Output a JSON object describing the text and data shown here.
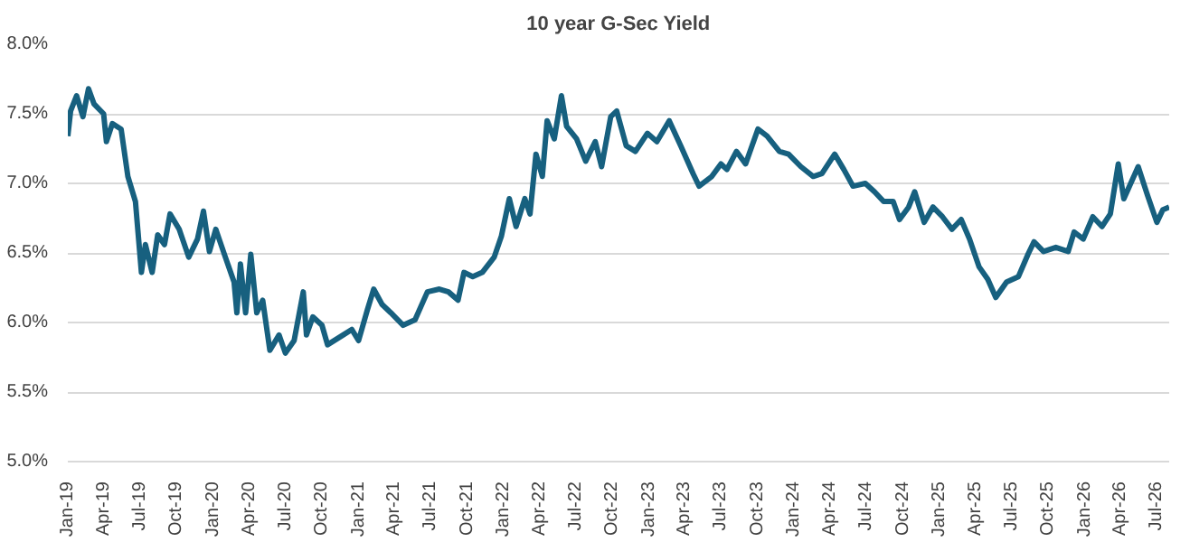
{
  "chart_data": {
    "type": "line",
    "title": "10 year G-Sec Yield",
    "x": [
      "2019-01-01",
      "2019-01-08",
      "2019-01-23",
      "2019-02-08",
      "2019-02-22",
      "2019-03-08",
      "2019-04-01",
      "2019-04-08",
      "2019-04-23",
      "2019-05-15",
      "2019-06-01",
      "2019-06-20",
      "2019-07-05",
      "2019-07-15",
      "2019-08-01",
      "2019-08-15",
      "2019-09-01",
      "2019-09-15",
      "2019-10-08",
      "2019-11-01",
      "2019-11-23",
      "2019-12-08",
      "2019-12-23",
      "2020-01-08",
      "2020-02-01",
      "2020-02-23",
      "2020-03-01",
      "2020-03-10",
      "2020-03-23",
      "2020-04-05",
      "2020-04-20",
      "2020-05-05",
      "2020-05-23",
      "2020-06-15",
      "2020-07-01",
      "2020-07-23",
      "2020-08-15",
      "2020-08-23",
      "2020-09-08",
      "2020-10-01",
      "2020-10-15",
      "2020-11-23",
      "2020-12-15",
      "2021-01-01",
      "2021-01-23",
      "2021-02-08",
      "2021-03-01",
      "2021-03-23",
      "2021-04-23",
      "2021-05-23",
      "2021-06-23",
      "2021-07-23",
      "2021-08-15",
      "2021-09-08",
      "2021-09-23",
      "2021-10-15",
      "2021-11-08",
      "2021-12-08",
      "2021-12-26",
      "2022-01-15",
      "2022-02-01",
      "2022-02-23",
      "2022-03-08",
      "2022-03-23",
      "2022-04-08",
      "2022-04-20",
      "2022-05-08",
      "2022-05-26",
      "2022-06-08",
      "2022-07-03",
      "2022-07-26",
      "2022-08-19",
      "2022-09-04",
      "2022-09-27",
      "2022-10-12",
      "2022-11-05",
      "2022-11-28",
      "2022-12-28",
      "2023-01-21",
      "2023-02-21",
      "2023-03-22",
      "2023-04-22",
      "2023-05-07",
      "2023-06-08",
      "2023-07-01",
      "2023-07-16",
      "2023-08-09",
      "2023-09-01",
      "2023-10-02",
      "2023-10-25",
      "2023-11-25",
      "2023-12-18",
      "2024-01-18",
      "2024-02-18",
      "2024-03-11",
      "2024-04-12",
      "2024-05-05",
      "2024-05-28",
      "2024-06-28",
      "2024-07-21",
      "2024-08-13",
      "2024-09-06",
      "2024-09-22",
      "2024-10-15",
      "2024-10-30",
      "2024-11-23",
      "2024-12-15",
      "2025-01-08",
      "2025-02-01",
      "2025-02-24",
      "2025-03-17",
      "2025-04-10",
      "2025-05-02",
      "2025-05-22",
      "2025-06-18",
      "2025-07-18",
      "2025-08-11",
      "2025-08-26",
      "2025-09-19",
      "2025-10-20",
      "2025-11-20",
      "2025-12-05",
      "2025-12-28",
      "2026-01-21",
      "2026-02-13",
      "2026-03-06",
      "2026-03-26",
      "2026-04-09",
      "2026-05-15",
      "2026-06-08",
      "2026-07-01",
      "2026-07-16",
      "2026-08-01"
    ],
    "series": [
      {
        "color": "#17607f",
        "values": [
          7.34,
          7.52,
          7.63,
          7.48,
          7.68,
          7.57,
          7.5,
          7.3,
          7.43,
          7.39,
          7.05,
          6.87,
          6.36,
          6.56,
          6.36,
          6.63,
          6.56,
          6.78,
          6.67,
          6.47,
          6.6,
          6.8,
          6.51,
          6.67,
          6.47,
          6.29,
          6.07,
          6.42,
          6.07,
          6.49,
          6.07,
          6.16,
          5.8,
          5.91,
          5.78,
          5.87,
          6.22,
          5.91,
          6.04,
          5.98,
          5.84,
          5.91,
          5.95,
          5.87,
          6.09,
          6.24,
          6.13,
          6.07,
          5.98,
          6.02,
          6.22,
          6.24,
          6.22,
          6.16,
          6.36,
          6.33,
          6.36,
          6.47,
          6.62,
          6.89,
          6.69,
          6.89,
          6.78,
          7.21,
          7.05,
          7.45,
          7.32,
          7.63,
          7.41,
          7.32,
          7.16,
          7.3,
          7.12,
          7.48,
          7.52,
          7.27,
          7.23,
          7.36,
          7.3,
          7.45,
          7.27,
          7.07,
          6.98,
          7.05,
          7.14,
          7.1,
          7.23,
          7.14,
          7.39,
          7.34,
          7.23,
          7.21,
          7.12,
          7.05,
          7.07,
          7.21,
          7.1,
          6.98,
          7.0,
          6.94,
          6.87,
          6.87,
          6.74,
          6.83,
          6.94,
          6.72,
          6.83,
          6.76,
          6.67,
          6.74,
          6.6,
          6.4,
          6.31,
          6.18,
          6.29,
          6.33,
          6.49,
          6.58,
          6.51,
          6.54,
          6.51,
          6.65,
          6.6,
          6.76,
          6.69,
          6.78,
          7.14,
          6.89,
          7.12,
          6.91,
          6.72,
          6.81,
          6.83
        ]
      }
    ],
    "xlim": [
      "2019-01-01",
      "2026-08-01"
    ],
    "xticks": [
      {
        "value": "2019-01-01",
        "label": "Jan-19"
      },
      {
        "value": "2019-04-01",
        "label": "Apr-19"
      },
      {
        "value": "2019-07-01",
        "label": "Jul-19"
      },
      {
        "value": "2019-10-01",
        "label": "Oct-19"
      },
      {
        "value": "2020-01-01",
        "label": "Jan-20"
      },
      {
        "value": "2020-04-01",
        "label": "Apr-20"
      },
      {
        "value": "2020-07-01",
        "label": "Jul-20"
      },
      {
        "value": "2020-10-01",
        "label": "Oct-20"
      },
      {
        "value": "2021-01-01",
        "label": "Jan-21"
      },
      {
        "value": "2021-04-01",
        "label": "Apr-21"
      },
      {
        "value": "2021-07-01",
        "label": "Jul-21"
      },
      {
        "value": "2021-10-01",
        "label": "Oct-21"
      },
      {
        "value": "2022-01-01",
        "label": "Jan-22"
      },
      {
        "value": "2022-04-01",
        "label": "Apr-22"
      },
      {
        "value": "2022-07-01",
        "label": "Jul-22"
      },
      {
        "value": "2022-10-01",
        "label": "Oct-22"
      },
      {
        "value": "2023-01-01",
        "label": "Jan-23"
      },
      {
        "value": "2023-04-01",
        "label": "Apr-23"
      },
      {
        "value": "2023-07-01",
        "label": "Jul-23"
      },
      {
        "value": "2023-10-01",
        "label": "Oct-23"
      },
      {
        "value": "2024-01-01",
        "label": "Jan-24"
      },
      {
        "value": "2024-04-01",
        "label": "Apr-24"
      },
      {
        "value": "2024-07-01",
        "label": "Jul-24"
      },
      {
        "value": "2024-10-01",
        "label": "Oct-24"
      },
      {
        "value": "2025-01-01",
        "label": "Jan-25"
      },
      {
        "value": "2025-04-01",
        "label": "Apr-25"
      },
      {
        "value": "2025-07-01",
        "label": "Jul-25"
      },
      {
        "value": "2025-10-01",
        "label": "Oct-25"
      },
      {
        "value": "2026-01-01",
        "label": "Jan-26"
      },
      {
        "value": "2026-04-01",
        "label": "Apr-26"
      },
      {
        "value": "2026-07-01",
        "label": "Jul-26"
      }
    ],
    "ylim": [
      5.0,
      8.0
    ],
    "yticks": [
      {
        "value": 5.0,
        "label": "5.0%"
      },
      {
        "value": 5.5,
        "label": "5.5%"
      },
      {
        "value": 6.0,
        "label": "6.0%"
      },
      {
        "value": 6.5,
        "label": "6.5%"
      },
      {
        "value": 7.0,
        "label": "7.0%"
      },
      {
        "value": 7.5,
        "label": "7.5%"
      },
      {
        "value": 8.0,
        "label": "8.0%"
      }
    ],
    "grid": "y",
    "marker": "none",
    "line_style": "solid"
  }
}
